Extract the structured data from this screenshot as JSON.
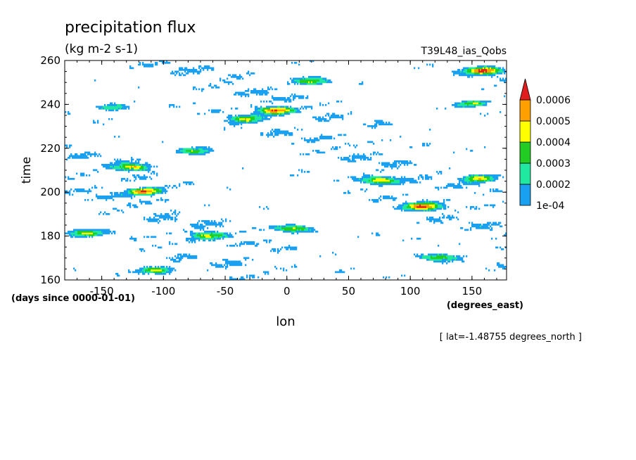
{
  "chart_data": {
    "type": "heatmap",
    "title": "precipitation flux",
    "subtitle": "(kg m-2 s-1)",
    "dataset_label": "T39L48_ias_Qobs",
    "xlabel": "lon",
    "x_units": "(degrees_east)",
    "ylabel": "time",
    "y_units": "(days since 0000-01-01)",
    "slice_label": "[ lat=-1.48755 degrees_north ]",
    "xlim": [
      -180,
      178
    ],
    "ylim": [
      160,
      260
    ],
    "x_ticks": [
      -150,
      -100,
      -50,
      0,
      50,
      100,
      150
    ],
    "y_ticks": [
      160,
      180,
      200,
      220,
      240,
      260
    ],
    "x_tick_labels": [
      "-150",
      "-100",
      "-50",
      "0",
      "50",
      "100",
      "150"
    ],
    "y_tick_labels": [
      "160",
      "180",
      "200",
      "220",
      "240",
      "260"
    ],
    "grid": false,
    "legend_position": "right",
    "colorbar": {
      "levels": [
        0.0001,
        0.0002,
        0.0003,
        0.0004,
        0.0005,
        0.0006
      ],
      "labels": [
        "1e-04",
        "0.0002",
        "0.0003",
        "0.0004",
        "0.0005",
        "0.0006"
      ],
      "colors": [
        "#1aa0f0",
        "#20e8a0",
        "#22cc22",
        "#ffff00",
        "#ffa000",
        "#e01e1e"
      ]
    },
    "hotspots": [
      {
        "lon": -165,
        "time": 181,
        "value": 0.0004
      },
      {
        "lon": -125,
        "time": 211,
        "value": 0.0005
      },
      {
        "lon": -115,
        "time": 200,
        "value": 0.0006
      },
      {
        "lon": -105,
        "time": 164,
        "value": 0.0005
      },
      {
        "lon": -75,
        "time": 218,
        "value": 0.0004
      },
      {
        "lon": -65,
        "time": 180,
        "value": 0.0004
      },
      {
        "lon": -35,
        "time": 233,
        "value": 0.0004
      },
      {
        "lon": -10,
        "time": 237,
        "value": 0.0006
      },
      {
        "lon": 5,
        "time": 183,
        "value": 0.0005
      },
      {
        "lon": 20,
        "time": 250,
        "value": 0.0004
      },
      {
        "lon": 75,
        "time": 205,
        "value": 0.0005
      },
      {
        "lon": 110,
        "time": 193,
        "value": 0.0006
      },
      {
        "lon": 155,
        "time": 206,
        "value": 0.0005
      },
      {
        "lon": 160,
        "time": 255,
        "value": 0.0006
      },
      {
        "lon": 150,
        "time": 240,
        "value": 0.0004
      },
      {
        "lon": -140,
        "time": 238,
        "value": 0.0004
      },
      {
        "lon": 120,
        "time": 170,
        "value": 0.0004
      }
    ]
  }
}
